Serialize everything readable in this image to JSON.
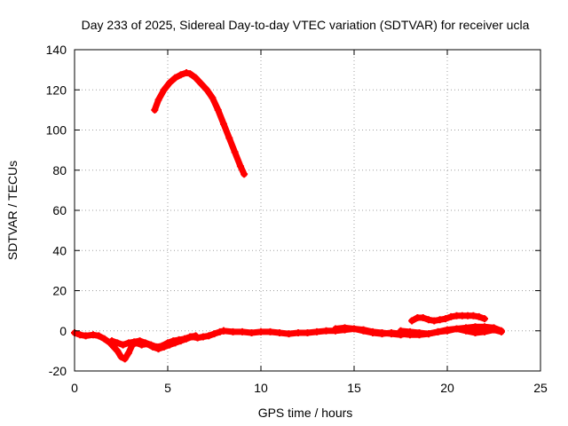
{
  "chart_data": {
    "type": "scatter",
    "title": "Day 233 of 2025, Sidereal Day-to-day VTEC variation (SDTVAR) for receiver ucla",
    "xlabel": "GPS time / hours",
    "ylabel": "SDTVAR / TECUs",
    "xlim": [
      0,
      25
    ],
    "ylim": [
      -20,
      140
    ],
    "xticks": [
      0,
      5,
      10,
      15,
      20,
      25
    ],
    "yticks": [
      -20,
      0,
      20,
      40,
      60,
      80,
      100,
      120,
      140
    ],
    "grid": true,
    "marker_color": "#ff0000",
    "series": [
      {
        "name": "arc-high",
        "x": [
          4.3,
          4.5,
          4.8,
          5.1,
          5.4,
          5.7,
          6.0,
          6.2,
          6.5,
          6.8,
          7.1,
          7.4,
          7.7,
          8.0,
          8.3,
          8.6,
          8.9,
          9.1
        ],
        "y": [
          110,
          115,
          120,
          123.5,
          126,
          127.5,
          128.5,
          128,
          126,
          123,
          120,
          116,
          110,
          103,
          96,
          89,
          82,
          78
        ]
      },
      {
        "name": "low-band-a",
        "x": [
          0.0,
          0.3,
          0.6,
          1.0,
          1.3,
          1.6,
          1.9,
          2.1,
          2.3,
          2.5,
          2.7,
          2.9,
          3.1,
          3.3,
          3.6,
          3.9,
          4.2,
          4.5,
          4.8,
          5.1,
          5.4,
          5.7,
          6.0,
          6.3,
          6.6,
          6.9,
          7.2,
          7.5,
          7.8,
          8.0
        ],
        "y": [
          -1,
          -2,
          -2.5,
          -2,
          -2.5,
          -4,
          -6,
          -8,
          -10,
          -13,
          -14,
          -11,
          -7,
          -6,
          -7,
          -6.5,
          -8,
          -9,
          -8,
          -7,
          -6,
          -5,
          -4,
          -3,
          -3.5,
          -3,
          -2.5,
          -1.5,
          -0.5,
          0
        ]
      },
      {
        "name": "low-band-b",
        "x": [
          2.0,
          2.3,
          2.6,
          2.9,
          3.2,
          3.5,
          3.8,
          4.1,
          4.4,
          4.7,
          5.0,
          5.3,
          5.6,
          5.9,
          6.2,
          6.5
        ],
        "y": [
          -5,
          -6,
          -7,
          -6,
          -5.5,
          -5,
          -6,
          -7,
          -8,
          -7.5,
          -6,
          -5,
          -4.5,
          -4,
          -3,
          -2.5
        ]
      },
      {
        "name": "low-band-c",
        "x": [
          8.0,
          8.5,
          9.0,
          9.5,
          10.0,
          10.5,
          11.0,
          11.5,
          12.0,
          12.5,
          13.0,
          13.5,
          14.0,
          14.5,
          15.0,
          15.5,
          16.0,
          16.5,
          17.0,
          17.5,
          18.0
        ],
        "y": [
          0,
          -0.5,
          -0.5,
          -1,
          -0.5,
          -0.5,
          -1,
          -1.5,
          -1,
          -1,
          -0.5,
          0,
          0,
          0.5,
          1,
          0.5,
          -0.5,
          -1,
          -1.5,
          -2,
          -1
        ]
      },
      {
        "name": "low-band-d",
        "x": [
          14.0,
          14.5,
          15.0,
          15.5,
          16.0,
          16.5,
          17.0,
          17.5,
          18.0,
          18.5,
          19.0,
          19.5,
          20.0,
          20.5,
          21.0,
          21.5,
          22.0,
          22.5,
          22.9
        ],
        "y": [
          1,
          1.5,
          1,
          0,
          -1,
          -1.5,
          -1,
          -1.5,
          -2,
          -2,
          -1.5,
          -0.5,
          0,
          1,
          1.5,
          2,
          2,
          1.5,
          0
        ]
      },
      {
        "name": "low-band-e",
        "x": [
          17.5,
          18.0,
          18.5,
          19.0,
          19.5,
          20.0,
          20.5,
          21.0,
          21.5,
          22.0,
          22.5,
          22.9
        ],
        "y": [
          0,
          -0.5,
          -1,
          -1.5,
          -0.5,
          0.5,
          1,
          0,
          -1,
          -0.5,
          0.5,
          -0.5
        ]
      },
      {
        "name": "upper-band-right",
        "x": [
          18.1,
          18.4,
          18.7,
          19.0,
          19.3,
          19.6,
          19.9,
          20.2,
          20.5,
          20.8,
          21.1,
          21.4,
          21.7,
          22.0
        ],
        "y": [
          5,
          6.5,
          6.5,
          5.5,
          5,
          5.5,
          6,
          7,
          7.5,
          7.5,
          7.5,
          7.5,
          7,
          6
        ]
      }
    ]
  }
}
